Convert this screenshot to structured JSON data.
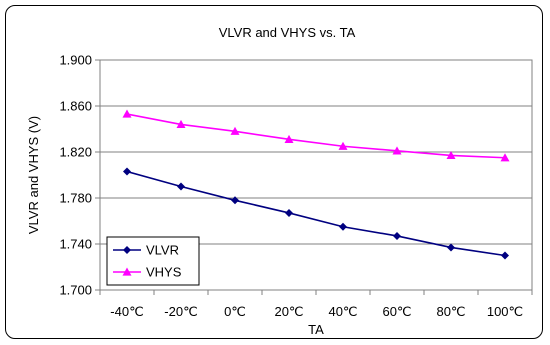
{
  "chart_data": {
    "type": "line",
    "title": "VLVR and VHYS vs. TA",
    "xlabel": "TA",
    "ylabel": "VLVR and VHYS (V)",
    "categories": [
      "-40℃",
      "-20℃",
      "0℃",
      "20℃",
      "40℃",
      "60℃",
      "80℃",
      "100℃"
    ],
    "ylim": [
      1.7,
      1.9
    ],
    "yticks": [
      "1.700",
      "1.740",
      "1.780",
      "1.820",
      "1.860",
      "1.900"
    ],
    "grid": true,
    "legend_position": "bottom-left",
    "series": [
      {
        "name": "VLVR",
        "color": "#000080",
        "marker": "diamond",
        "values": [
          1.803,
          1.79,
          1.778,
          1.767,
          1.755,
          1.747,
          1.737,
          1.73
        ]
      },
      {
        "name": "VHYS",
        "color": "#ff00ff",
        "marker": "triangle",
        "values": [
          1.853,
          1.844,
          1.838,
          1.831,
          1.825,
          1.821,
          1.817,
          1.815
        ]
      }
    ]
  }
}
